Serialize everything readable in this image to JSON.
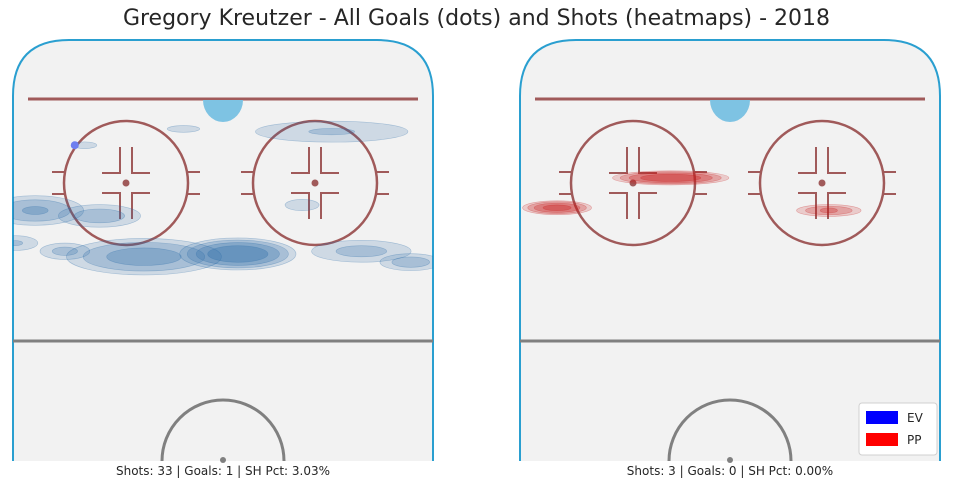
{
  "title": "Gregory Kreutzer - All Goals (dots) and Shots (heatmaps) - 2018",
  "chart_data": [
    {
      "type": "heatmap",
      "panel": "left",
      "strength": "EV",
      "caption": "Shots: 33 | Goals: 1 | SH Pct: 3.03%",
      "stats": {
        "shots": 33,
        "goals": 1,
        "sh_pct": 3.03
      },
      "goal_color": "#6f7ff0",
      "heat_color": "#2b6ca8",
      "goals": [
        {
          "x": -30,
          "y": 72
        }
      ],
      "shot_clusters": [
        {
          "x": 3,
          "y": 32,
          "sx": 10,
          "sy": 5,
          "w": 1.0
        },
        {
          "x": -16,
          "y": 31,
          "sx": 14,
          "sy": 6,
          "w": 0.7
        },
        {
          "x": -38,
          "y": 48,
          "sx": 9,
          "sy": 5,
          "w": 0.6
        },
        {
          "x": -25,
          "y": 46,
          "sx": 8,
          "sy": 4,
          "w": 0.5
        },
        {
          "x": -32,
          "y": 33,
          "sx": 5,
          "sy": 3,
          "w": 0.45
        },
        {
          "x": -42,
          "y": 36,
          "sx": 5,
          "sy": 3,
          "w": 0.35
        },
        {
          "x": 28,
          "y": 33,
          "sx": 10,
          "sy": 4,
          "w": 0.45
        },
        {
          "x": 38,
          "y": 29,
          "sx": 6,
          "sy": 3,
          "w": 0.5
        },
        {
          "x": 16,
          "y": 50,
          "sx": 5,
          "sy": 3,
          "w": 0.25
        },
        {
          "x": 22,
          "y": 77,
          "sx": 16,
          "sy": 4,
          "w": 0.4
        },
        {
          "x": -8,
          "y": 78,
          "sx": 8,
          "sy": 3,
          "w": 0.15
        },
        {
          "x": -28,
          "y": 72,
          "sx": 6,
          "sy": 3,
          "w": 0.18
        }
      ]
    },
    {
      "type": "heatmap",
      "panel": "right",
      "strength": "PP",
      "caption": "Shots: 3 | Goals: 0 | SH Pct: 0.00%",
      "stats": {
        "shots": 3,
        "goals": 0,
        "sh_pct": 0.0
      },
      "heat_color": "#c81e1e",
      "goals": [],
      "shot_clusters": [
        {
          "x": -12,
          "y": 60,
          "sx": 10,
          "sy": 2.2,
          "w": 1.0
        },
        {
          "x": -35,
          "y": 49,
          "sx": 6,
          "sy": 2.2,
          "w": 0.9
        },
        {
          "x": 20,
          "y": 48,
          "sx": 6,
          "sy": 2,
          "w": 0.6
        }
      ]
    }
  ],
  "legend": {
    "position": "bottom-right",
    "entries": [
      {
        "label": "EV",
        "color": "#0000ff"
      },
      {
        "label": "PP",
        "color": "#ff0000"
      }
    ]
  }
}
